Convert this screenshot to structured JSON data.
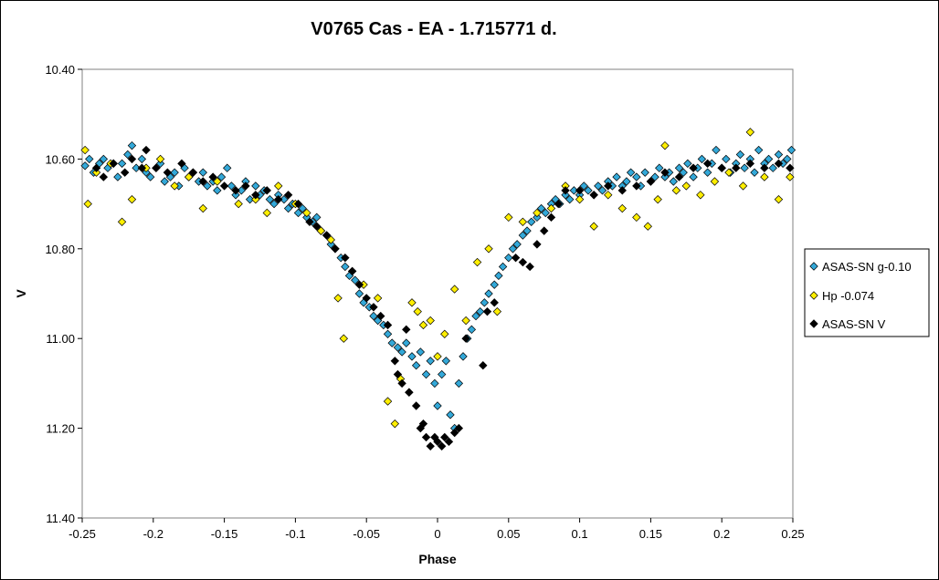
{
  "chart_data": {
    "type": "scatter",
    "title": "V0765 Cas - EA - 1.715771 d.",
    "xlabel": "Phase",
    "ylabel": "V",
    "xlim": [
      -0.25,
      0.25
    ],
    "ylim": [
      10.4,
      11.4
    ],
    "y_inverted": true,
    "grid": false,
    "legend_position": "right",
    "x_ticks": [
      "-0.25",
      "-0.2",
      "-0.15",
      "-0.1",
      "-0.05",
      "0",
      "0.05",
      "0.1",
      "0.15",
      "0.2",
      "0.25"
    ],
    "x_tick_values": [
      -0.25,
      -0.2,
      -0.15,
      -0.1,
      -0.05,
      0,
      0.05,
      0.1,
      0.15,
      0.2,
      0.25
    ],
    "y_ticks": [
      "10.40",
      "10.60",
      "10.80",
      "11.00",
      "11.20",
      "11.40"
    ],
    "y_tick_values": [
      10.4,
      10.6,
      10.8,
      11.0,
      11.2,
      11.4
    ],
    "series": [
      {
        "name": "ASAS-SN g-0.10",
        "color": "#33a8d8",
        "points": [
          [
            -0.248,
            10.615
          ],
          [
            -0.245,
            10.6
          ],
          [
            -0.242,
            10.63
          ],
          [
            -0.238,
            10.61
          ],
          [
            -0.235,
            10.6
          ],
          [
            -0.232,
            10.62
          ],
          [
            -0.228,
            10.61
          ],
          [
            -0.225,
            10.64
          ],
          [
            -0.222,
            10.61
          ],
          [
            -0.218,
            10.59
          ],
          [
            -0.215,
            10.57
          ],
          [
            -0.212,
            10.62
          ],
          [
            -0.208,
            10.6
          ],
          [
            -0.205,
            10.63
          ],
          [
            -0.202,
            10.64
          ],
          [
            -0.198,
            10.62
          ],
          [
            -0.195,
            10.61
          ],
          [
            -0.192,
            10.65
          ],
          [
            -0.188,
            10.64
          ],
          [
            -0.185,
            10.63
          ],
          [
            -0.182,
            10.66
          ],
          [
            -0.178,
            10.62
          ],
          [
            -0.175,
            10.64
          ],
          [
            -0.172,
            10.63
          ],
          [
            -0.168,
            10.65
          ],
          [
            -0.165,
            10.63
          ],
          [
            -0.162,
            10.66
          ],
          [
            -0.158,
            10.65
          ],
          [
            -0.155,
            10.67
          ],
          [
            -0.152,
            10.64
          ],
          [
            -0.148,
            10.62
          ],
          [
            -0.145,
            10.66
          ],
          [
            -0.142,
            10.68
          ],
          [
            -0.138,
            10.67
          ],
          [
            -0.135,
            10.65
          ],
          [
            -0.132,
            10.69
          ],
          [
            -0.128,
            10.66
          ],
          [
            -0.125,
            10.68
          ],
          [
            -0.122,
            10.67
          ],
          [
            -0.118,
            10.69
          ],
          [
            -0.115,
            10.7
          ],
          [
            -0.112,
            10.68
          ],
          [
            -0.108,
            10.69
          ],
          [
            -0.105,
            10.71
          ],
          [
            -0.102,
            10.7
          ],
          [
            -0.098,
            10.72
          ],
          [
            -0.095,
            10.71
          ],
          [
            -0.092,
            10.73
          ],
          [
            -0.088,
            10.74
          ],
          [
            -0.085,
            10.73
          ],
          [
            -0.082,
            10.76
          ],
          [
            -0.078,
            10.77
          ],
          [
            -0.075,
            10.79
          ],
          [
            -0.072,
            10.8
          ],
          [
            -0.068,
            10.82
          ],
          [
            -0.065,
            10.84
          ],
          [
            -0.062,
            10.86
          ],
          [
            -0.058,
            10.87
          ],
          [
            -0.055,
            10.9
          ],
          [
            -0.052,
            10.92
          ],
          [
            -0.048,
            10.93
          ],
          [
            -0.045,
            10.95
          ],
          [
            -0.042,
            10.96
          ],
          [
            -0.038,
            10.97
          ],
          [
            -0.035,
            10.99
          ],
          [
            -0.032,
            11.01
          ],
          [
            -0.028,
            11.02
          ],
          [
            -0.025,
            11.03
          ],
          [
            -0.022,
            11.01
          ],
          [
            -0.018,
            11.04
          ],
          [
            -0.015,
            11.06
          ],
          [
            -0.012,
            11.03
          ],
          [
            -0.008,
            11.08
          ],
          [
            -0.005,
            11.05
          ],
          [
            -0.002,
            11.1
          ],
          [
            0.0,
            11.15
          ],
          [
            0.003,
            11.08
          ],
          [
            0.006,
            11.05
          ],
          [
            0.009,
            11.17
          ],
          [
            0.012,
            11.2
          ],
          [
            0.015,
            11.1
          ],
          [
            0.018,
            11.04
          ],
          [
            0.021,
            11.0
          ],
          [
            0.024,
            10.98
          ],
          [
            0.027,
            10.95
          ],
          [
            0.03,
            10.94
          ],
          [
            0.033,
            10.92
          ],
          [
            0.036,
            10.9
          ],
          [
            0.04,
            10.88
          ],
          [
            0.043,
            10.86
          ],
          [
            0.046,
            10.84
          ],
          [
            0.05,
            10.82
          ],
          [
            0.053,
            10.8
          ],
          [
            0.056,
            10.79
          ],
          [
            0.06,
            10.77
          ],
          [
            0.063,
            10.76
          ],
          [
            0.066,
            10.74
          ],
          [
            0.07,
            10.73
          ],
          [
            0.073,
            10.71
          ],
          [
            0.076,
            10.72
          ],
          [
            0.08,
            10.7
          ],
          [
            0.083,
            10.69
          ],
          [
            0.086,
            10.7
          ],
          [
            0.09,
            10.68
          ],
          [
            0.093,
            10.69
          ],
          [
            0.096,
            10.67
          ],
          [
            0.1,
            10.68
          ],
          [
            0.103,
            10.66
          ],
          [
            0.106,
            10.67
          ],
          [
            0.11,
            10.68
          ],
          [
            0.113,
            10.66
          ],
          [
            0.116,
            10.67
          ],
          [
            0.12,
            10.65
          ],
          [
            0.123,
            10.66
          ],
          [
            0.126,
            10.64
          ],
          [
            0.13,
            10.66
          ],
          [
            0.133,
            10.65
          ],
          [
            0.136,
            10.63
          ],
          [
            0.14,
            10.64
          ],
          [
            0.143,
            10.66
          ],
          [
            0.146,
            10.63
          ],
          [
            0.15,
            10.65
          ],
          [
            0.153,
            10.64
          ],
          [
            0.156,
            10.62
          ],
          [
            0.16,
            10.64
          ],
          [
            0.163,
            10.63
          ],
          [
            0.166,
            10.65
          ],
          [
            0.17,
            10.62
          ],
          [
            0.173,
            10.63
          ],
          [
            0.176,
            10.61
          ],
          [
            0.18,
            10.64
          ],
          [
            0.183,
            10.62
          ],
          [
            0.186,
            10.6
          ],
          [
            0.19,
            10.63
          ],
          [
            0.193,
            10.61
          ],
          [
            0.196,
            10.58
          ],
          [
            0.2,
            10.62
          ],
          [
            0.203,
            10.6
          ],
          [
            0.206,
            10.63
          ],
          [
            0.21,
            10.61
          ],
          [
            0.213,
            10.59
          ],
          [
            0.216,
            10.62
          ],
          [
            0.22,
            10.6
          ],
          [
            0.223,
            10.63
          ],
          [
            0.226,
            10.58
          ],
          [
            0.23,
            10.61
          ],
          [
            0.233,
            10.6
          ],
          [
            0.236,
            10.62
          ],
          [
            0.24,
            10.59
          ],
          [
            0.243,
            10.61
          ],
          [
            0.246,
            10.6
          ],
          [
            0.249,
            10.58
          ]
        ]
      },
      {
        "name": "Hp -0.074",
        "color": "#ffee00",
        "points": [
          [
            -0.248,
            10.58
          ],
          [
            -0.246,
            10.7
          ],
          [
            -0.24,
            10.63
          ],
          [
            -0.23,
            10.61
          ],
          [
            -0.222,
            10.74
          ],
          [
            -0.215,
            10.69
          ],
          [
            -0.205,
            10.62
          ],
          [
            -0.195,
            10.6
          ],
          [
            -0.185,
            10.66
          ],
          [
            -0.175,
            10.64
          ],
          [
            -0.165,
            10.71
          ],
          [
            -0.155,
            10.65
          ],
          [
            -0.14,
            10.7
          ],
          [
            -0.128,
            10.69
          ],
          [
            -0.12,
            10.72
          ],
          [
            -0.112,
            10.66
          ],
          [
            -0.1,
            10.7
          ],
          [
            -0.092,
            10.72
          ],
          [
            -0.082,
            10.76
          ],
          [
            -0.075,
            10.78
          ],
          [
            -0.07,
            10.91
          ],
          [
            -0.066,
            11.0
          ],
          [
            -0.06,
            10.85
          ],
          [
            -0.052,
            10.88
          ],
          [
            -0.042,
            10.91
          ],
          [
            -0.035,
            11.14
          ],
          [
            -0.03,
            11.19
          ],
          [
            -0.026,
            11.09
          ],
          [
            -0.02,
            11.12
          ],
          [
            -0.018,
            10.92
          ],
          [
            -0.014,
            10.94
          ],
          [
            -0.01,
            10.97
          ],
          [
            -0.005,
            10.96
          ],
          [
            0.0,
            11.04
          ],
          [
            0.005,
            10.99
          ],
          [
            0.012,
            10.89
          ],
          [
            0.02,
            10.96
          ],
          [
            0.028,
            10.83
          ],
          [
            0.036,
            10.8
          ],
          [
            0.042,
            10.94
          ],
          [
            0.05,
            10.73
          ],
          [
            0.06,
            10.74
          ],
          [
            0.07,
            10.72
          ],
          [
            0.08,
            10.71
          ],
          [
            0.09,
            10.66
          ],
          [
            0.1,
            10.69
          ],
          [
            0.11,
            10.75
          ],
          [
            0.12,
            10.68
          ],
          [
            0.13,
            10.71
          ],
          [
            0.14,
            10.73
          ],
          [
            0.148,
            10.75
          ],
          [
            0.155,
            10.69
          ],
          [
            0.16,
            10.57
          ],
          [
            0.168,
            10.67
          ],
          [
            0.175,
            10.66
          ],
          [
            0.185,
            10.68
          ],
          [
            0.195,
            10.65
          ],
          [
            0.205,
            10.63
          ],
          [
            0.215,
            10.66
          ],
          [
            0.22,
            10.54
          ],
          [
            0.23,
            10.64
          ],
          [
            0.24,
            10.69
          ],
          [
            0.248,
            10.64
          ]
        ]
      },
      {
        "name": "ASAS-SN V",
        "color": "#000000",
        "points": [
          [
            -0.24,
            10.62
          ],
          [
            -0.235,
            10.64
          ],
          [
            -0.228,
            10.61
          ],
          [
            -0.22,
            10.63
          ],
          [
            -0.215,
            10.6
          ],
          [
            -0.208,
            10.62
          ],
          [
            -0.205,
            10.58
          ],
          [
            -0.198,
            10.62
          ],
          [
            -0.19,
            10.63
          ],
          [
            -0.18,
            10.61
          ],
          [
            -0.172,
            10.63
          ],
          [
            -0.165,
            10.65
          ],
          [
            -0.158,
            10.64
          ],
          [
            -0.15,
            10.66
          ],
          [
            -0.142,
            10.67
          ],
          [
            -0.135,
            10.66
          ],
          [
            -0.128,
            10.68
          ],
          [
            -0.12,
            10.67
          ],
          [
            -0.112,
            10.69
          ],
          [
            -0.105,
            10.68
          ],
          [
            -0.098,
            10.7
          ],
          [
            -0.09,
            10.74
          ],
          [
            -0.085,
            10.75
          ],
          [
            -0.078,
            10.77
          ],
          [
            -0.072,
            10.8
          ],
          [
            -0.065,
            10.82
          ],
          [
            -0.06,
            10.85
          ],
          [
            -0.055,
            10.88
          ],
          [
            -0.05,
            10.91
          ],
          [
            -0.045,
            10.93
          ],
          [
            -0.04,
            10.95
          ],
          [
            -0.035,
            10.97
          ],
          [
            -0.03,
            11.05
          ],
          [
            -0.028,
            11.08
          ],
          [
            -0.025,
            11.1
          ],
          [
            -0.022,
            10.98
          ],
          [
            -0.02,
            11.12
          ],
          [
            -0.015,
            11.15
          ],
          [
            -0.012,
            11.2
          ],
          [
            -0.01,
            11.19
          ],
          [
            -0.008,
            11.22
          ],
          [
            -0.005,
            11.24
          ],
          [
            -0.002,
            11.22
          ],
          [
            0.0,
            11.23
          ],
          [
            0.003,
            11.24
          ],
          [
            0.005,
            11.22
          ],
          [
            0.008,
            11.23
          ],
          [
            0.012,
            11.21
          ],
          [
            0.015,
            11.2
          ],
          [
            0.02,
            11.0
          ],
          [
            0.032,
            11.06
          ],
          [
            0.035,
            10.94
          ],
          [
            0.04,
            10.92
          ],
          [
            0.055,
            10.82
          ],
          [
            0.06,
            10.83
          ],
          [
            0.065,
            10.84
          ],
          [
            0.07,
            10.79
          ],
          [
            0.075,
            10.76
          ],
          [
            0.08,
            10.73
          ],
          [
            0.085,
            10.7
          ],
          [
            0.09,
            10.67
          ],
          [
            0.1,
            10.67
          ],
          [
            0.11,
            10.68
          ],
          [
            0.12,
            10.66
          ],
          [
            0.13,
            10.67
          ],
          [
            0.14,
            10.66
          ],
          [
            0.15,
            10.65
          ],
          [
            0.16,
            10.63
          ],
          [
            0.17,
            10.64
          ],
          [
            0.18,
            10.62
          ],
          [
            0.19,
            10.61
          ],
          [
            0.2,
            10.62
          ],
          [
            0.21,
            10.62
          ],
          [
            0.22,
            10.61
          ],
          [
            0.23,
            10.62
          ],
          [
            0.24,
            10.61
          ],
          [
            0.248,
            10.62
          ]
        ]
      }
    ]
  }
}
